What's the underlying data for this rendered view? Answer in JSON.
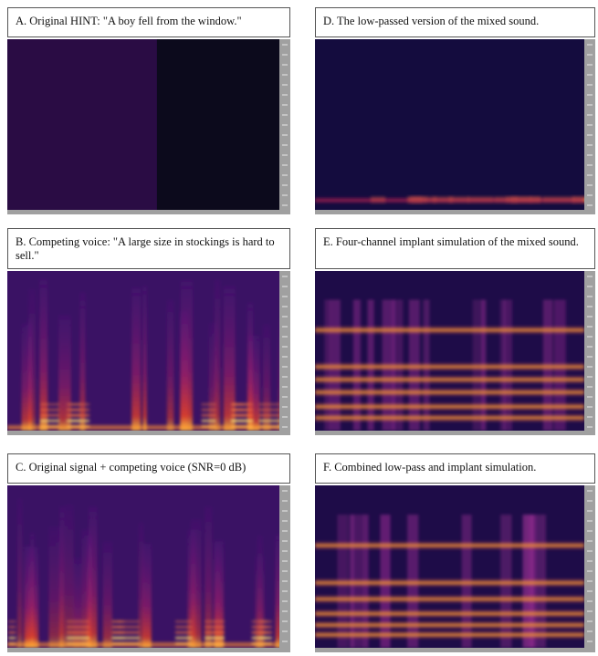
{
  "panels": [
    {
      "caption": "A. Original HINT: \"A boy fell from the window.\""
    },
    {
      "caption": "B. Competing voice: \"A large size in stockings is hard to sell.\""
    },
    {
      "caption": "C. Original signal + competing voice (SNR=0 dB)"
    },
    {
      "caption": "D. The low-passed version of the mixed sound."
    },
    {
      "caption": "E. Four-channel implant simulation of the mixed sound."
    },
    {
      "caption": "F. Combined low-pass and implant simulation."
    }
  ]
}
